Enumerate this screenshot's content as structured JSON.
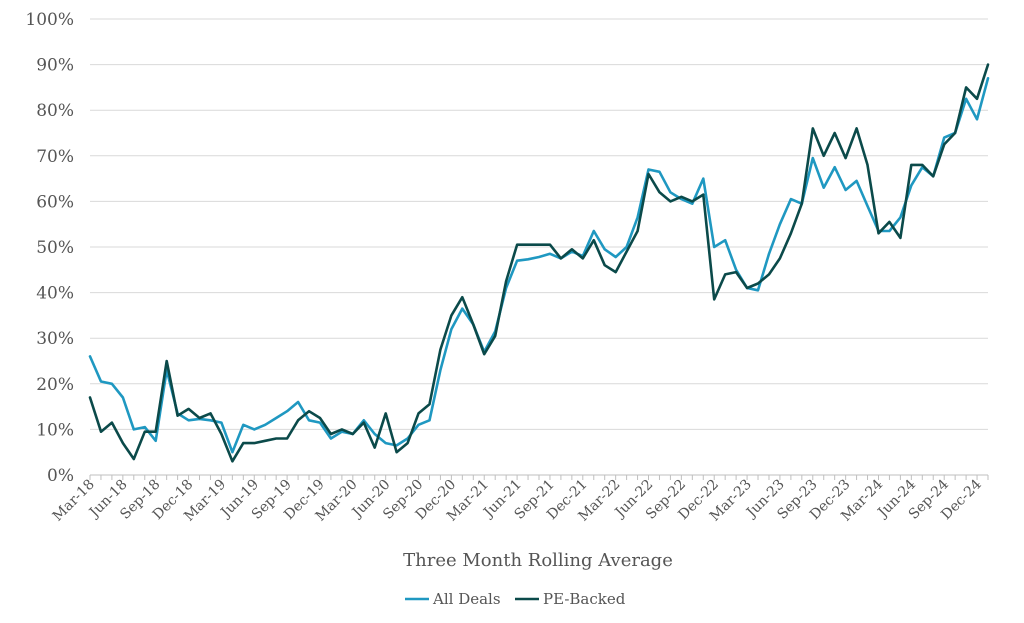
{
  "chart_data": {
    "type": "line",
    "title": "",
    "xlabel": "Three Month Rolling Average",
    "ylabel": "",
    "ylim": [
      0,
      100
    ],
    "y_ticks": [
      "0%",
      "10%",
      "20%",
      "30%",
      "40%",
      "50%",
      "60%",
      "70%",
      "80%",
      "90%",
      "100%"
    ],
    "x_tick_labels": [
      "Mar-18",
      "Jun-18",
      "Sep-18",
      "Dec-18",
      "Mar-19",
      "Jun-19",
      "Sep-19",
      "Dec-19",
      "Mar-20",
      "Jun-20",
      "Sep-20",
      "Dec-20",
      "Mar-21",
      "Jun-21",
      "Sep-21",
      "Dec-21",
      "Mar-22",
      "Jun-22",
      "Sep-22",
      "Dec-22",
      "Mar-23",
      "Jun-23",
      "Sep-23",
      "Dec-23",
      "Mar-24",
      "Jun-24",
      "Sep-24",
      "Dec-24"
    ],
    "x_tick_every": 3,
    "grid": true,
    "legend_position": "bottom-center",
    "series": [
      {
        "name": "All Deals",
        "color": "#1f98c1",
        "values": [
          26,
          20.5,
          20,
          17,
          10,
          10.5,
          7.5,
          23,
          13.5,
          12,
          12.3,
          12,
          11.5,
          5,
          11,
          10,
          11,
          12.5,
          14,
          16,
          12,
          11.5,
          8,
          9.5,
          9,
          12,
          9,
          7,
          6.5,
          8,
          11,
          12,
          23,
          32,
          36.5,
          33,
          27,
          31.5,
          41,
          47,
          47.3,
          47.8,
          48.5,
          47.5,
          49,
          48,
          53.5,
          49.5,
          47.8,
          50,
          56.5,
          67,
          66.5,
          62,
          60.5,
          59.5,
          65,
          50,
          51.5,
          45,
          41,
          40.5,
          48.5,
          55,
          60.5,
          59.5,
          69.5,
          63,
          67.5,
          62.5,
          64.5,
          59,
          53.5,
          53.5,
          56.5,
          63.5,
          67.5,
          65.5,
          74,
          75,
          82.5,
          78,
          87
        ]
      },
      {
        "name": "PE-Backed",
        "color": "#0b4a4a",
        "values": [
          17,
          9.5,
          11.5,
          7,
          3.5,
          9.5,
          9.5,
          25,
          13,
          14.5,
          12.5,
          13.5,
          9,
          3,
          7,
          7,
          7.5,
          8,
          8,
          12,
          14,
          12.5,
          9,
          10,
          9,
          11.5,
          6,
          13.5,
          5,
          7,
          13.5,
          15.5,
          27.5,
          35,
          39,
          33,
          26.5,
          30.5,
          42.5,
          50.5,
          50.5,
          50.5,
          50.5,
          47.5,
          49.5,
          47.5,
          51.5,
          46,
          44.5,
          49,
          53.5,
          66,
          62,
          60,
          61,
          60,
          61.5,
          38.5,
          44,
          44.5,
          41,
          42,
          44,
          47.5,
          53,
          59.5,
          76,
          70,
          75,
          69.5,
          76,
          68,
          53,
          55.5,
          52,
          68,
          68,
          65.5,
          72.5,
          75,
          85,
          82.5,
          90
        ]
      }
    ]
  }
}
